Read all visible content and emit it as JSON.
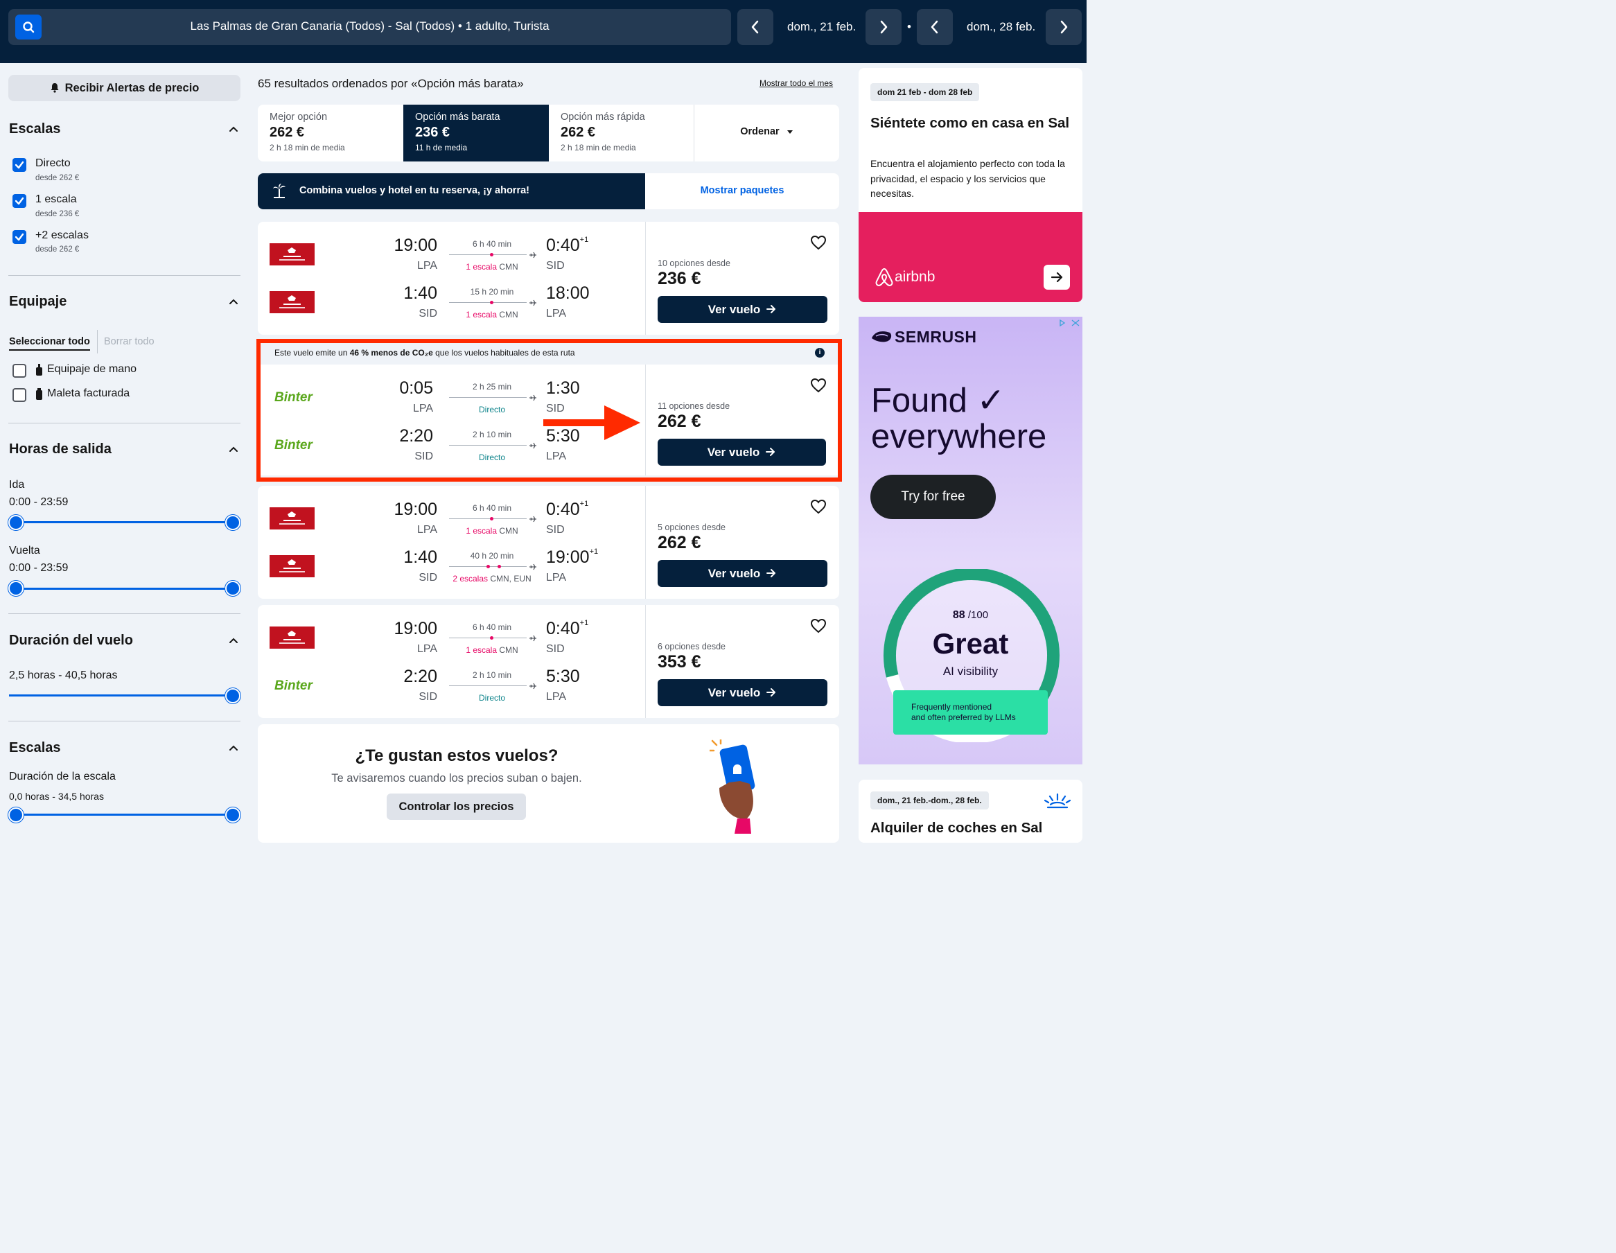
{
  "topbar": {
    "route": "Las Palmas de Gran Canaria (Todos) - Sal (Todos)  •  1 adulto, Turista",
    "depart_date": "dom., 21 feb.",
    "return_date": "dom., 28 feb.",
    "separator": "•"
  },
  "sidebar": {
    "alert_button": "Recibir Alertas de precio",
    "stops_title": "Escalas",
    "stops": [
      {
        "label": "Directo",
        "sub": "desde 262 €"
      },
      {
        "label": "1 escala",
        "sub": "desde 236 €"
      },
      {
        "label": "+2 escalas",
        "sub": "desde 262 €"
      }
    ],
    "baggage_title": "Equipaje",
    "select_all": "Seleccionar todo",
    "clear_all": "Borrar todo",
    "baggage": [
      {
        "label": "Equipaje de mano"
      },
      {
        "label": "Maleta facturada"
      }
    ],
    "times_title": "Horas de salida",
    "outbound_label": "Ida",
    "outbound_range": "0:00 - 23:59",
    "return_label": "Vuelta",
    "return_range": "0:00 - 23:59",
    "duration_title": "Duración del vuelo",
    "duration_range": "2,5 horas - 40,5 horas",
    "layover_title": "Escalas",
    "layover_label": "Duración de la escala",
    "layover_range": "0,0 horas - 34,5 horas"
  },
  "main": {
    "results_count": "65 resultados ordenados por «Opción más barata»",
    "month_link": "Mostrar todo el mes",
    "sort_tabs": [
      {
        "label": "Mejor opción",
        "price": "262 €",
        "sub": "2 h 18 min de media"
      },
      {
        "label": "Opción más barata",
        "price": "236 €",
        "sub": "11 h de media"
      },
      {
        "label": "Opción más rápida",
        "price": "262 €",
        "sub": "2 h 18 min de media"
      }
    ],
    "sort_button": "Ordenar",
    "promo_text": "Combina vuelos y hotel en tu reserva, ¡y ahorra!",
    "promo_link": "Mostrar paquetes",
    "co2_prefix": "Este vuelo emite un ",
    "co2_bold": "46 % menos de CO₂e",
    "co2_suffix": " que los vuelos habituales de esta ruta",
    "view_button": "Ver vuelo",
    "cards": [
      {
        "options": "10 opciones desde",
        "price": "236 €",
        "legs": [
          {
            "airline": "ram",
            "dep": "19:00",
            "dep_ap": "LPA",
            "dur": "6 h 40 min",
            "stops_red": "1 escala",
            "stops_rest": " CMN",
            "arr": "0:40",
            "plus": "+1",
            "arr_ap": "SID"
          },
          {
            "airline": "ram",
            "dep": "1:40",
            "dep_ap": "SID",
            "dur": "15 h 20 min",
            "stops_red": "1 escala",
            "stops_rest": " CMN",
            "arr": "18:00",
            "plus": "",
            "arr_ap": "LPA"
          }
        ]
      },
      {
        "options": "11 opciones desde",
        "price": "262 €",
        "legs": [
          {
            "airline": "Binter",
            "dep": "0:05",
            "dep_ap": "LPA",
            "dur": "2 h 25 min",
            "stops_direct": "Directo",
            "arr": "1:30",
            "plus": "",
            "arr_ap": "SID"
          },
          {
            "airline": "Binter",
            "dep": "2:20",
            "dep_ap": "SID",
            "dur": "2 h 10 min",
            "stops_direct": "Directo",
            "arr": "5:30",
            "plus": "",
            "arr_ap": "LPA"
          }
        ]
      },
      {
        "options": "5 opciones desde",
        "price": "262 €",
        "legs": [
          {
            "airline": "ram",
            "dep": "19:00",
            "dep_ap": "LPA",
            "dur": "6 h 40 min",
            "stops_red": "1 escala",
            "stops_rest": " CMN",
            "arr": "0:40",
            "plus": "+1",
            "arr_ap": "SID"
          },
          {
            "airline": "ram",
            "dep": "1:40",
            "dep_ap": "SID",
            "dur": "40 h 20 min",
            "stops_red": "2 escalas",
            "stops_rest": " CMN, EUN",
            "arr": "19:00",
            "plus": "+1",
            "arr_ap": "LPA"
          }
        ]
      },
      {
        "options": "6 opciones desde",
        "price": "353 €",
        "legs": [
          {
            "airline": "ram",
            "dep": "19:00",
            "dep_ap": "LPA",
            "dur": "6 h 40 min",
            "stops_red": "1 escala",
            "stops_rest": " CMN",
            "arr": "0:40",
            "plus": "+1",
            "arr_ap": "SID"
          },
          {
            "airline": "Binter",
            "dep": "2:20",
            "dep_ap": "SID",
            "dur": "2 h 10 min",
            "stops_direct": "Directo",
            "arr": "5:30",
            "plus": "",
            "arr_ap": "LPA"
          }
        ]
      }
    ],
    "like_title": "¿Te gustan estos vuelos?",
    "like_sub": "Te avisaremos cuando los precios suban o bajen.",
    "track_button": "Controlar los precios"
  },
  "right": {
    "stay_dates": "dom 21 feb - dom 28 feb",
    "stay_title": "Siéntete como en casa en Sal",
    "stay_desc": "Encuentra el alojamiento perfecto con toda la privacidad, el espacio y los servicios que necesitas.",
    "airbnb": "airbnb",
    "ad": {
      "brand": "SEMRUSH",
      "headline1": "Found ✓",
      "headline2": "everywhere",
      "cta": "Try for free",
      "score": "88",
      "score_total": "/100",
      "great": "Great",
      "ai": "AI visibility",
      "llm_line1": "Frequently mentioned",
      "llm_line2": "and often preferred by LLMs",
      "score_fraction": 0.88
    },
    "cars_dates": "dom., 21 feb.-dom., 28 feb.",
    "cars_title": "Alquiler de coches en Sal"
  },
  "colors": {
    "brand": "#05203c",
    "accent": "#0062e3",
    "airbnb": "#e51f5e",
    "highlight": "#ff2a00",
    "binter": "#5aa71c",
    "stop_red": "#e70866"
  }
}
